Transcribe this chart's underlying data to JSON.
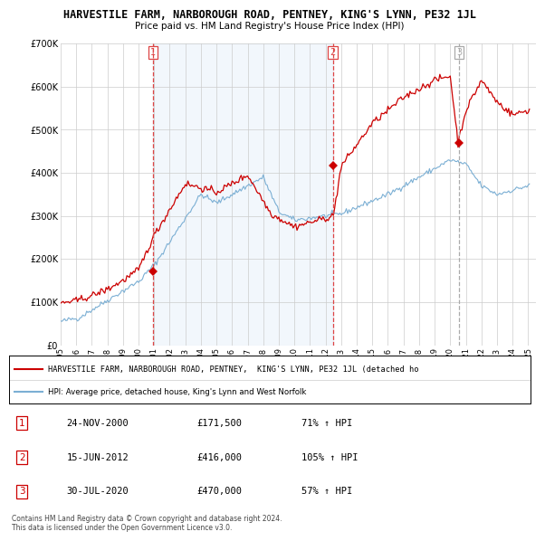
{
  "title": "HARVESTILE FARM, NARBOROUGH ROAD, PENTNEY, KING'S LYNN, PE32 1JL",
  "subtitle": "Price paid vs. HM Land Registry's House Price Index (HPI)",
  "red_color": "#cc0000",
  "blue_color": "#7bafd4",
  "vline_color_red": "#dd4444",
  "vline_color_gray": "#aaaaaa",
  "bg_color": "#ffffff",
  "fill_color": "#ddeeff",
  "grid_color": "#cccccc",
  "transaction_dates": [
    2000.92,
    2012.46,
    2020.58
  ],
  "transaction_labels": [
    "1",
    "2",
    "3"
  ],
  "transaction_prices": [
    171500,
    416000,
    470000
  ],
  "legend_line1": "HARVESTILE FARM, NARBOROUGH ROAD, PENTNEY,  KING'S LYNN, PE32 1JL (detached ho",
  "legend_line2": "HPI: Average price, detached house, King's Lynn and West Norfolk",
  "table_rows": [
    [
      "1",
      "24-NOV-2000",
      "£171,500",
      "71% ↑ HPI"
    ],
    [
      "2",
      "15-JUN-2012",
      "£416,000",
      "105% ↑ HPI"
    ],
    [
      "3",
      "30-JUL-2020",
      "£470,000",
      "57% ↑ HPI"
    ]
  ],
  "footer": "Contains HM Land Registry data © Crown copyright and database right 2024.\nThis data is licensed under the Open Government Licence v3.0.",
  "ylim": [
    0,
    700000
  ],
  "yticks": [
    0,
    100000,
    200000,
    300000,
    400000,
    500000,
    600000,
    700000
  ],
  "ytick_labels": [
    "£0",
    "£100K",
    "£200K",
    "£300K",
    "£400K",
    "£500K",
    "£600K",
    "£700K"
  ],
  "xlim_start": 1995.0,
  "xlim_end": 2025.5
}
